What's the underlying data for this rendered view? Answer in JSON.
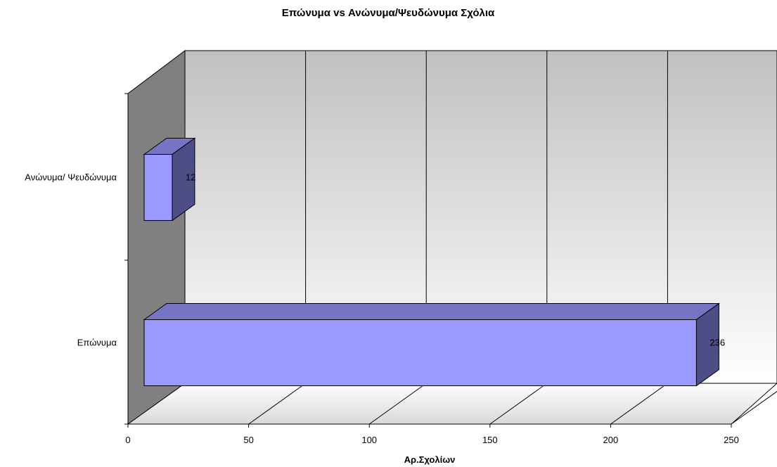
{
  "chart_data": {
    "type": "bar",
    "orientation": "horizontal",
    "style": "3d",
    "title": "Επώνυμα vs Ανώνυμα/Ψευδώνυμα Σχόλια",
    "xlabel": "Αρ.Σχολίων",
    "ylabel": "",
    "categories": [
      "Ανώνυμα/ Ψευδώνυμα",
      "Επώνυμα"
    ],
    "values": [
      12,
      236
    ],
    "data_labels": [
      "12",
      "236"
    ],
    "xlim": [
      0,
      250
    ],
    "x_ticks": [
      0,
      50,
      100,
      150,
      200,
      250
    ],
    "x_tick_labels": [
      "0",
      "50",
      "100",
      "150",
      "200",
      "250"
    ],
    "grid": true,
    "legend": "none",
    "colors": {
      "bar_front": "#9999ff",
      "bar_top": "#7575c4",
      "bar_side": "#4e4e86",
      "back_wall_top": "#c0c0c0",
      "back_wall_bottom": "#ffffff",
      "side_wall": "#808080",
      "floor": "#e0e0e0"
    }
  }
}
